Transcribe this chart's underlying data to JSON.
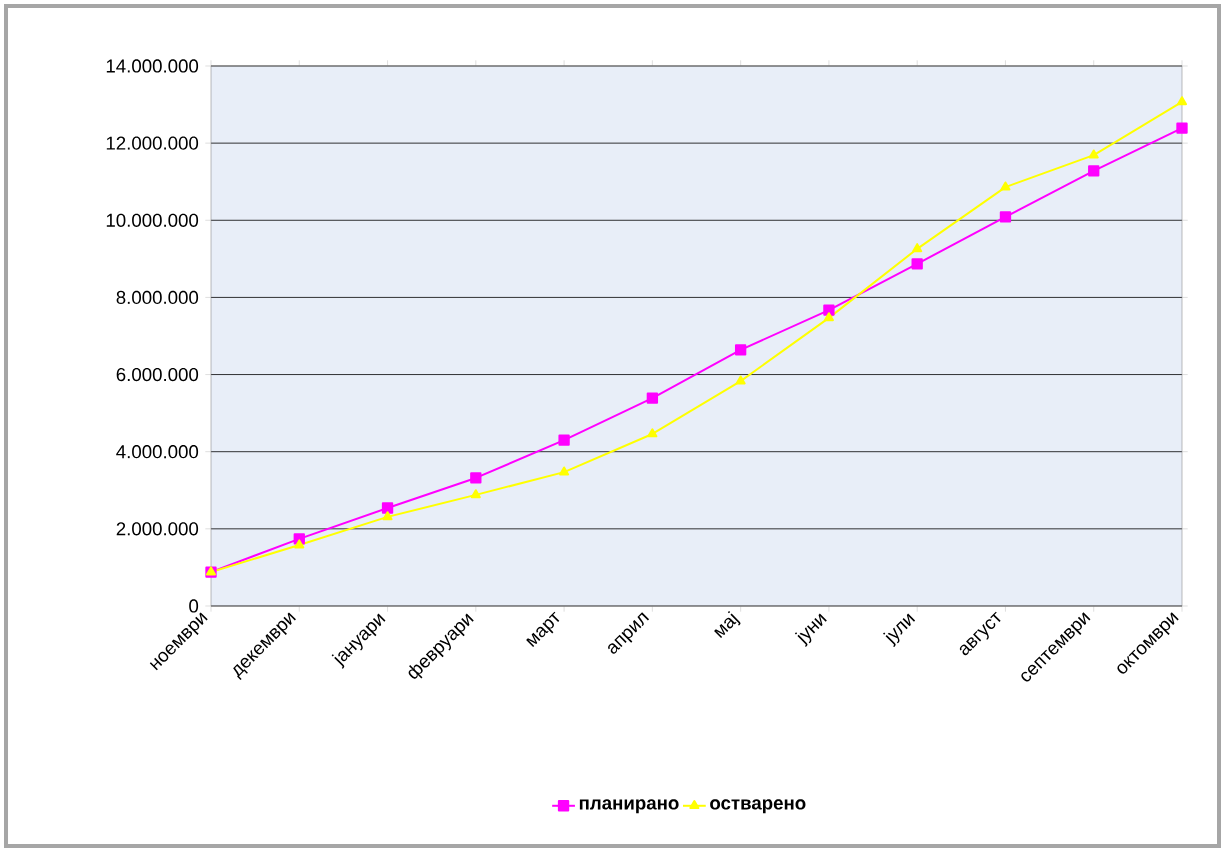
{
  "chart_data": {
    "type": "line",
    "categories": [
      "ноември",
      "декември",
      "јануари",
      "февруари",
      "март",
      "април",
      "мај",
      "јуни",
      "јули",
      "август",
      "септември",
      "октомври"
    ],
    "series": [
      {
        "name": "планирано",
        "color": "#ff00ff",
        "marker": "square",
        "values": [
          880000,
          1740000,
          2540000,
          3320000,
          4300000,
          5390000,
          6640000,
          7670000,
          8870000,
          10090000,
          11280000,
          12390000
        ]
      },
      {
        "name": "остварено",
        "color": "#ffff00",
        "marker": "triangle",
        "values": [
          880000,
          1580000,
          2310000,
          2880000,
          3470000,
          4460000,
          5830000,
          7470000,
          9260000,
          10860000,
          11690000,
          13070000
        ]
      }
    ],
    "ylim": [
      0,
      14000000
    ],
    "yticks": [
      0,
      {
        "value": 2000000,
        "label": "2.000.000"
      },
      {
        "value": 4000000,
        "label": "4.000.000"
      },
      {
        "value": 6000000,
        "label": "6.000.000"
      },
      {
        "value": 8000000,
        "label": "8.000.000"
      },
      {
        "value": 10000000,
        "label": "10.000.000"
      },
      {
        "value": 12000000,
        "label": "12.000.000"
      },
      {
        "value": 14000000,
        "label": "14.000.000"
      }
    ],
    "grid": "y",
    "legend": "bottom",
    "line_style": "solid"
  }
}
